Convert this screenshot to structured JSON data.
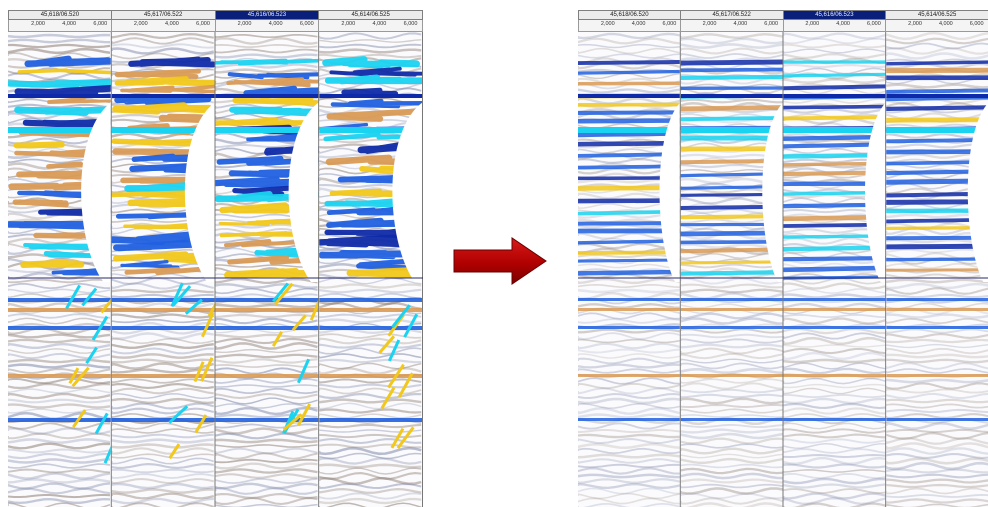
{
  "panels": [
    {
      "id": "before",
      "trace_headers": [
        "45,618/06.520",
        "45,617/06.522",
        "45,616/06.523",
        "45,614/06.525"
      ],
      "selected_trace": 2,
      "tick_labels": [
        "2,000",
        "4,000",
        "6,000"
      ],
      "style": "noisy"
    },
    {
      "id": "after",
      "trace_headers": [
        "45,618/06.520",
        "45,617/06.522",
        "45,616/06.523",
        "45,614/06.525"
      ],
      "selected_trace": 2,
      "tick_labels": [
        "2,000",
        "4,000",
        "6,000"
      ],
      "style": "clean"
    }
  ],
  "arrow": {
    "direction": "right",
    "color": "#c00000"
  },
  "colors": {
    "strong_negative": "#0f2aa8",
    "negative": "#2060e0",
    "cyan": "#19d3f0",
    "positive": "#d99a55",
    "strong_positive": "#f2c81a",
    "background": "#ffffff"
  }
}
